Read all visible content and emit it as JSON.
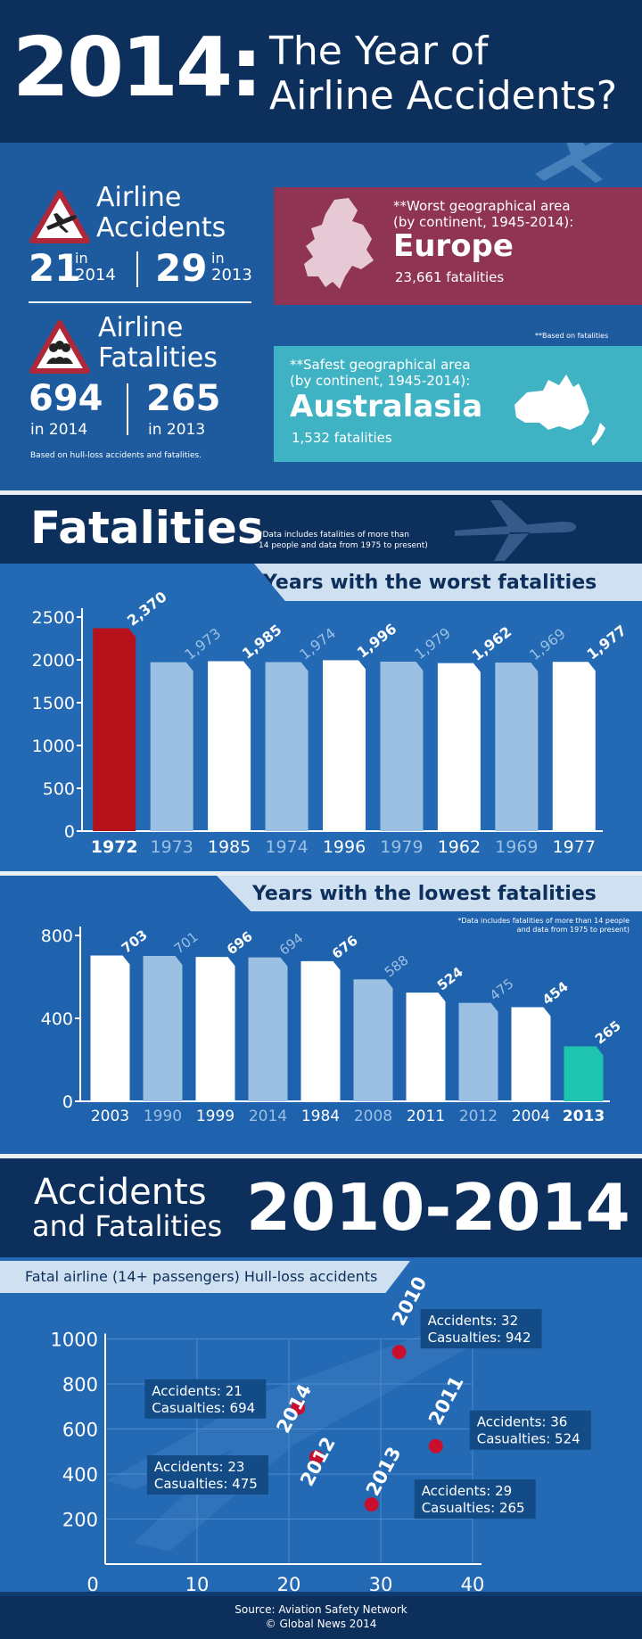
{
  "header": {
    "year": "2014:",
    "title_line1": "The Year of",
    "title_line2": "Airline Accidents?"
  },
  "accidents": {
    "label_line1": "Airline",
    "label_line2": "Accidents",
    "value_2014": "21",
    "value_2013": "29",
    "in_word": "in",
    "year_2014": "2014",
    "year_2013": "2013"
  },
  "fatalities_stat": {
    "label_line1": "Airline",
    "label_line2": "Fatalities",
    "value_2014": "694",
    "value_2013": "265",
    "sub_2014": "in 2014",
    "sub_2013": "in 2013",
    "note": "Based on hull-loss accidents and fatalities."
  },
  "worst_area": {
    "line1": "**Worst geographical area",
    "line2": "(by continent, 1945-2014):",
    "name": "Europe",
    "fatalities": "23,661 fatalities",
    "color": "#8f3553"
  },
  "fatalities_note": "**Based on fatalities",
  "safest_area": {
    "line1": "**Safest geographical area",
    "line2": "(by continent, 1945-2014):",
    "name": "Australasia",
    "fatalities": "1,532 fatalities",
    "color": "#3fb3c4"
  },
  "fatalities_section": {
    "title": "Fatalities",
    "note_line1": "*Data includes fatalities of more than",
    "note_line2": "14 people and data from 1975 to present)"
  },
  "lowest_note": {
    "line1": "*Data includes fatalities of more than 14 people",
    "line2": "and data from 1975 to present)"
  },
  "accidents_section": {
    "line1": "Accidents",
    "line2": "and Fatalities",
    "years": "2010-2014",
    "subtitle": "Fatal airline (14+ passengers) Hull-loss accidents"
  },
  "footer": {
    "source": "Source: Aviation Safety Network",
    "credit": "© Global News 2014"
  },
  "colors": {
    "highlight_red": "#b5121b",
    "highlight_teal": "#1fc4b0",
    "bar_white": "#ffffff",
    "bar_light": "#9cc0e2",
    "dot_red": "#c8102e"
  },
  "chart_data": [
    {
      "type": "bar",
      "title": "Years with the worst fatalities",
      "categories": [
        "1972",
        "1973",
        "1985",
        "1974",
        "1996",
        "1979",
        "1962",
        "1969",
        "1977"
      ],
      "values": [
        2370,
        1973,
        1985,
        1974,
        1996,
        1979,
        1962,
        1969,
        1977
      ],
      "value_labels": [
        "2,370",
        "1,973",
        "1,985",
        "1,974",
        "1,996",
        "1,979",
        "1,962",
        "1,969",
        "1,977"
      ],
      "yticks": [
        0,
        500,
        1000,
        1500,
        2000,
        2500
      ],
      "ylim": [
        0,
        2500
      ],
      "highlight": "1972"
    },
    {
      "type": "bar",
      "title": "Years with the lowest fatalities",
      "categories": [
        "2003",
        "1990",
        "1999",
        "2014",
        "1984",
        "2008",
        "2011",
        "2012",
        "2004",
        "2013"
      ],
      "values": [
        703,
        701,
        696,
        694,
        676,
        588,
        524,
        475,
        454,
        265
      ],
      "value_labels": [
        "703",
        "701",
        "696",
        "694",
        "676",
        "588",
        "524",
        "475",
        "454",
        "265"
      ],
      "yticks": [
        0,
        400,
        800
      ],
      "ylim": [
        0,
        800
      ],
      "highlight": "2013"
    },
    {
      "type": "scatter",
      "title": "Fatal airline (14+ passengers) Hull-loss accidents",
      "xticks": [
        0,
        10,
        20,
        30,
        40
      ],
      "yticks": [
        200,
        400,
        600,
        800,
        1000
      ],
      "xlim": [
        0,
        40
      ],
      "ylim": [
        0,
        1000
      ],
      "points": [
        {
          "year": "2010",
          "accidents": 32,
          "casualties": 942,
          "label1": "Accidents: 32",
          "label2": "Casualties: 942"
        },
        {
          "year": "2011",
          "accidents": 36,
          "casualties": 524,
          "label1": "Accidents: 36",
          "label2": "Casualties: 524"
        },
        {
          "year": "2012",
          "accidents": 23,
          "casualties": 475,
          "label1": "Accidents: 23",
          "label2": "Casualties: 475"
        },
        {
          "year": "2013",
          "accidents": 29,
          "casualties": 265,
          "label1": "Accidents: 29",
          "label2": "Casualties: 265"
        },
        {
          "year": "2014",
          "accidents": 21,
          "casualties": 694,
          "label1": "Accidents: 21",
          "label2": "Casualties: 694"
        }
      ]
    }
  ]
}
